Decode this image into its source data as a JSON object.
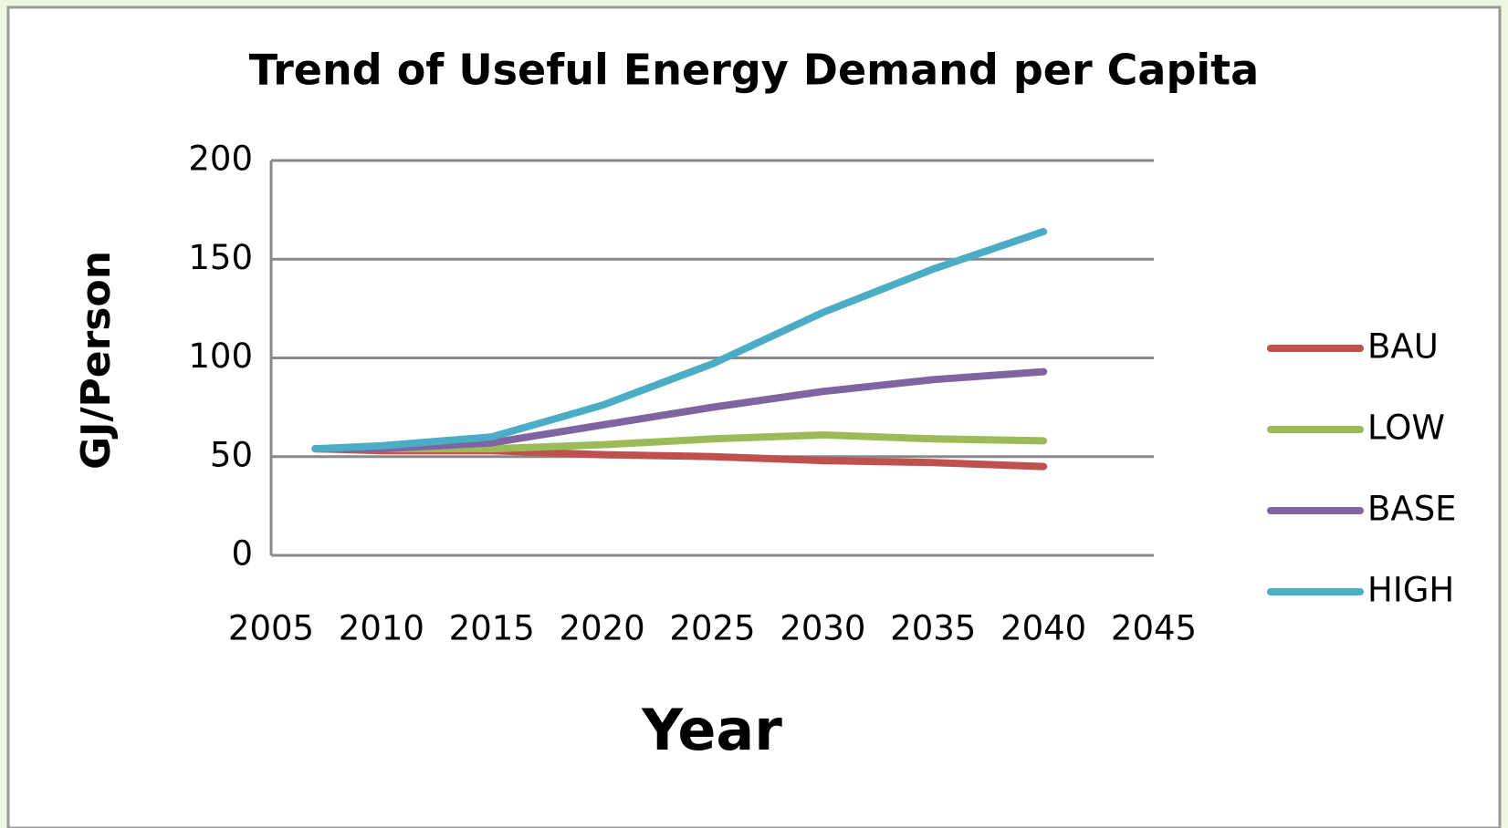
{
  "chart_data": {
    "type": "line",
    "title": "Trend of Useful Energy Demand per Capita",
    "xlabel": "Year",
    "ylabel": "GJ/Person",
    "x": [
      2007,
      2010,
      2015,
      2020,
      2025,
      2030,
      2035,
      2040
    ],
    "series": [
      {
        "name": "BAU",
        "color": "#c0504d",
        "values": [
          54,
          53,
          53,
          51,
          50,
          48,
          47,
          45
        ]
      },
      {
        "name": "LOW",
        "color": "#9bbb59",
        "values": [
          54,
          54,
          54,
          56,
          59,
          61,
          59,
          58
        ]
      },
      {
        "name": "BASE",
        "color": "#8064a2",
        "values": [
          54,
          54,
          57,
          66,
          75,
          83,
          89,
          93
        ]
      },
      {
        "name": "HIGH",
        "color": "#4bacc6",
        "values": [
          54,
          55.5,
          60,
          76,
          97,
          123,
          145,
          164
        ]
      }
    ],
    "xlim": [
      2005,
      2045
    ],
    "xticks": [
      2005,
      2010,
      2015,
      2020,
      2025,
      2030,
      2035,
      2040,
      2045
    ],
    "ylim": [
      0,
      200
    ],
    "yticks": [
      0,
      50,
      100,
      150,
      200
    ],
    "grid": true,
    "legend": "right"
  }
}
